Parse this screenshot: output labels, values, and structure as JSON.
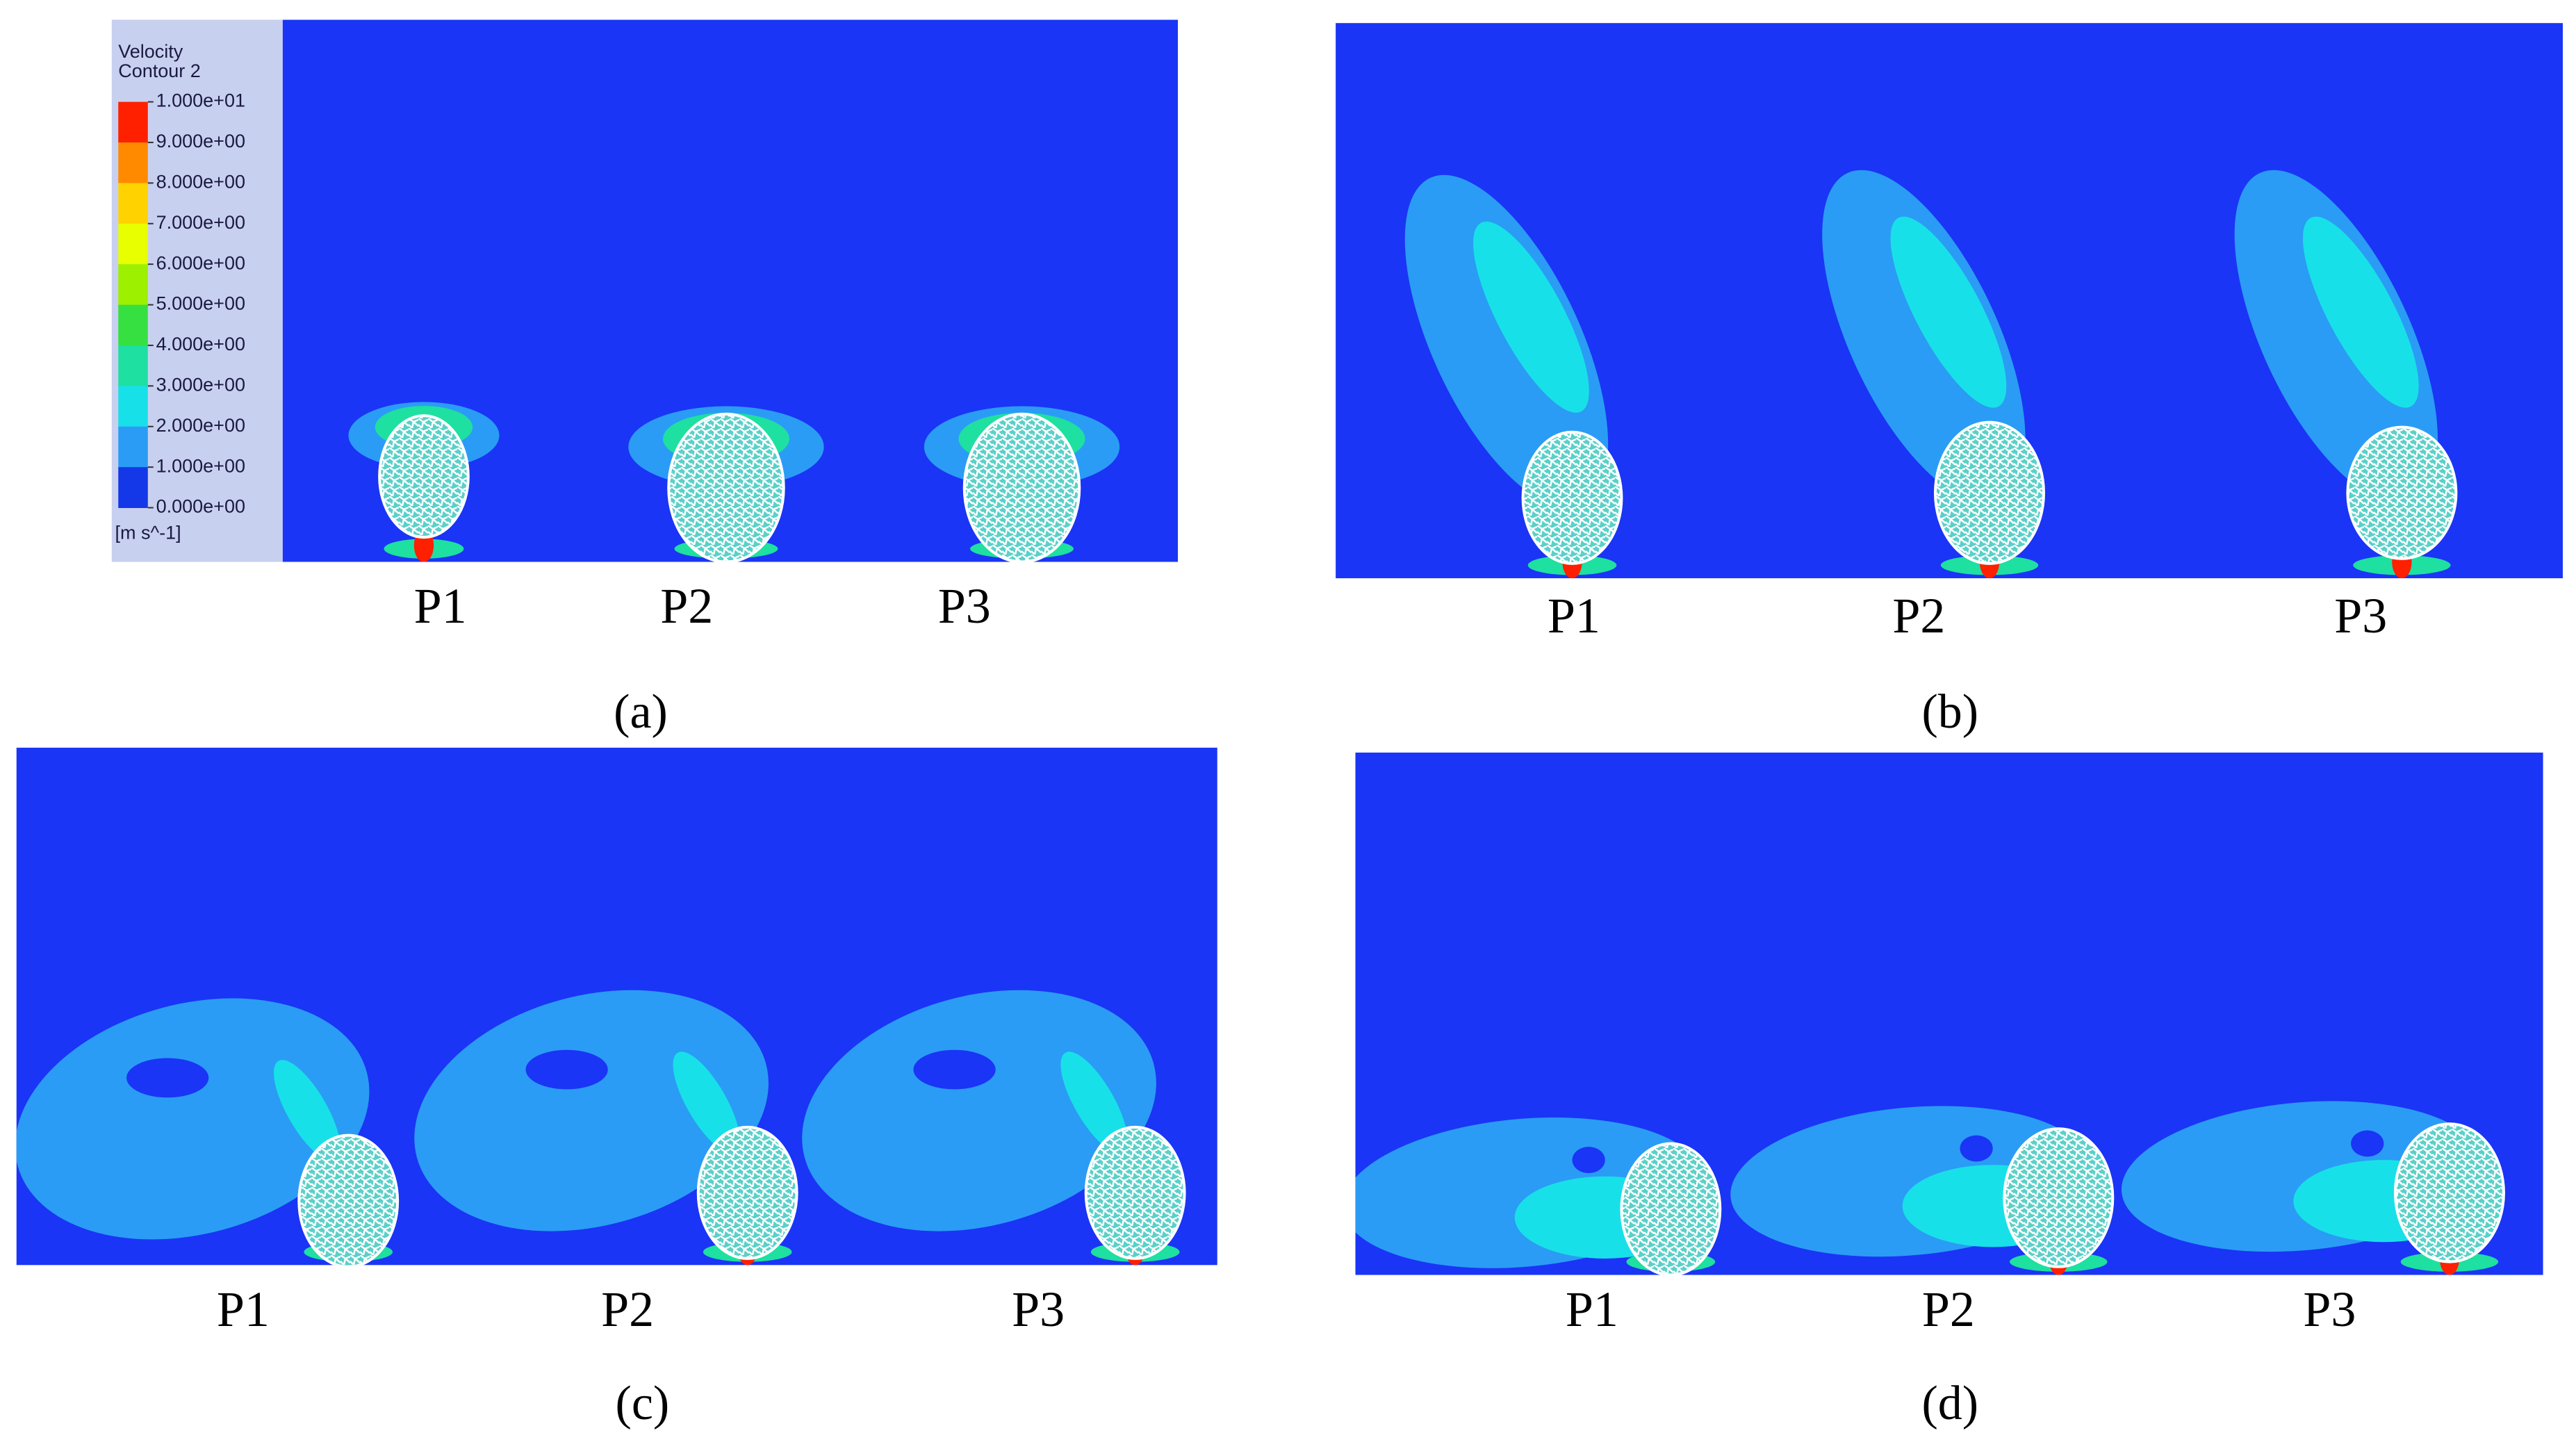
{
  "panels": [
    {
      "caption": "(a)",
      "labels": [
        "P1",
        "P2",
        "P3"
      ]
    },
    {
      "caption": "(b)",
      "labels": [
        "P1",
        "P2",
        "P3"
      ]
    },
    {
      "caption": "(c)",
      "labels": [
        "P1",
        "P2",
        "P3"
      ]
    },
    {
      "caption": "(d)",
      "labels": [
        "P1",
        "P2",
        "P3"
      ]
    }
  ],
  "colorbar": {
    "title": [
      "Velocity",
      "Contour 2"
    ],
    "unit": "[m s^-1]",
    "ticks": [
      {
        "value": 10,
        "label": "1.000e+01"
      },
      {
        "value": 9,
        "label": "9.000e+00"
      },
      {
        "value": 8,
        "label": "8.000e+00"
      },
      {
        "value": 7,
        "label": "7.000e+00"
      },
      {
        "value": 6,
        "label": "6.000e+00"
      },
      {
        "value": 5,
        "label": "5.000e+00"
      },
      {
        "value": 4,
        "label": "4.000e+00"
      },
      {
        "value": 3,
        "label": "3.000e+00"
      },
      {
        "value": 2,
        "label": "2.000e+00"
      },
      {
        "value": 1,
        "label": "1.000e+00"
      },
      {
        "value": 0,
        "label": "0.000e+00"
      }
    ],
    "colors": [
      "#ff2000",
      "#ff8a00",
      "#ffd200",
      "#e8ff00",
      "#9cf000",
      "#36e040",
      "#1ee0a0",
      "#18e0e8",
      "#2a9cf5",
      "#1438e8"
    ]
  }
}
